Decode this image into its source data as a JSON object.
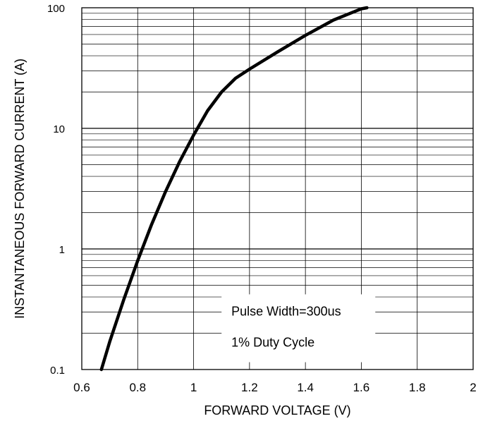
{
  "chart_data": {
    "type": "line",
    "xlabel": "FORWARD VOLTAGE (V)",
    "ylabel": "INSTANTANEOUS FORWARD CURRENT (A)",
    "x_scale": "linear",
    "y_scale": "log",
    "xlim": [
      0.6,
      2.0
    ],
    "ylim": [
      0.1,
      100
    ],
    "x_ticks": [
      "0.6",
      "0.8",
      "1",
      "1.2",
      "1.4",
      "1.6",
      "1.8",
      "2"
    ],
    "y_ticks": [
      "0.1",
      "1",
      "10",
      "100"
    ],
    "grid": true,
    "annotation": [
      "Pulse Width=300us",
      "1% Duty Cycle"
    ],
    "series": [
      {
        "x": [
          0.67,
          0.7,
          0.75,
          0.8,
          0.85,
          0.9,
          0.95,
          1.0,
          1.05,
          1.1,
          1.15,
          1.2,
          1.3,
          1.4,
          1.5,
          1.6,
          1.62
        ],
        "y": [
          0.1,
          0.17,
          0.38,
          0.8,
          1.6,
          3.0,
          5.3,
          8.8,
          14,
          20,
          26,
          31,
          43,
          59,
          79,
          98,
          100
        ]
      }
    ],
    "line_color": "#000000"
  }
}
